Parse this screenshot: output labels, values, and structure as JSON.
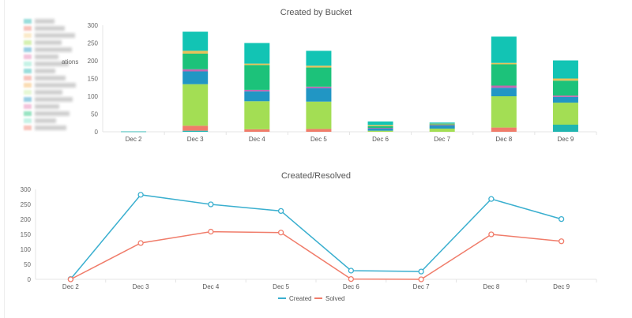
{
  "chart_data": [
    {
      "type": "bar",
      "stacked": true,
      "title": "Created by Bucket",
      "categories": [
        "Dec 2",
        "Dec 3",
        "Dec 4",
        "Dec 5",
        "Dec 6",
        "Dec 7",
        "Dec 8",
        "Dec 9"
      ],
      "ylim": [
        0,
        300
      ],
      "yticks": [
        0,
        50,
        100,
        150,
        200,
        250,
        300
      ],
      "grid": false,
      "legend": "left",
      "legend_fragment": "ations",
      "colors": [
        "#1fb5b0",
        "#f07c6a",
        "#a3de54",
        "#2196c4",
        "#c466b0",
        "#1cc27a",
        "#e8c25a",
        "#12c4b4"
      ],
      "series": [
        {
          "values": [
            1,
            3,
            0,
            0,
            0,
            0,
            0,
            20
          ]
        },
        {
          "values": [
            0,
            14,
            7,
            8,
            0,
            0,
            12,
            0
          ]
        },
        {
          "values": [
            0,
            117,
            79,
            77,
            3,
            9,
            88,
            62
          ]
        },
        {
          "values": [
            0,
            36,
            28,
            38,
            7,
            9,
            24,
            16
          ]
        },
        {
          "values": [
            0,
            6,
            4,
            4,
            1,
            1,
            6,
            4
          ]
        },
        {
          "values": [
            0,
            44,
            70,
            54,
            5,
            3,
            60,
            42
          ]
        },
        {
          "values": [
            0,
            8,
            4,
            5,
            3,
            1,
            4,
            6
          ]
        },
        {
          "values": [
            0,
            54,
            58,
            42,
            10,
            3,
            74,
            51
          ]
        }
      ]
    },
    {
      "type": "line",
      "title": "Created/Resolved",
      "categories": [
        "Dec 2",
        "Dec 3",
        "Dec 4",
        "Dec 5",
        "Dec 6",
        "Dec 7",
        "Dec 8",
        "Dec 9"
      ],
      "ylim": [
        0,
        300
      ],
      "yticks": [
        0,
        50,
        100,
        150,
        200,
        250,
        300
      ],
      "grid": false,
      "legend": "bottom",
      "series": [
        {
          "name": "Created",
          "color": "#3aafcf",
          "values": [
            1,
            282,
            250,
            228,
            29,
            26,
            268,
            201
          ]
        },
        {
          "name": "Solved",
          "color": "#f07c6a",
          "values": [
            0,
            121,
            159,
            156,
            1,
            0,
            150,
            127
          ]
        }
      ]
    }
  ]
}
